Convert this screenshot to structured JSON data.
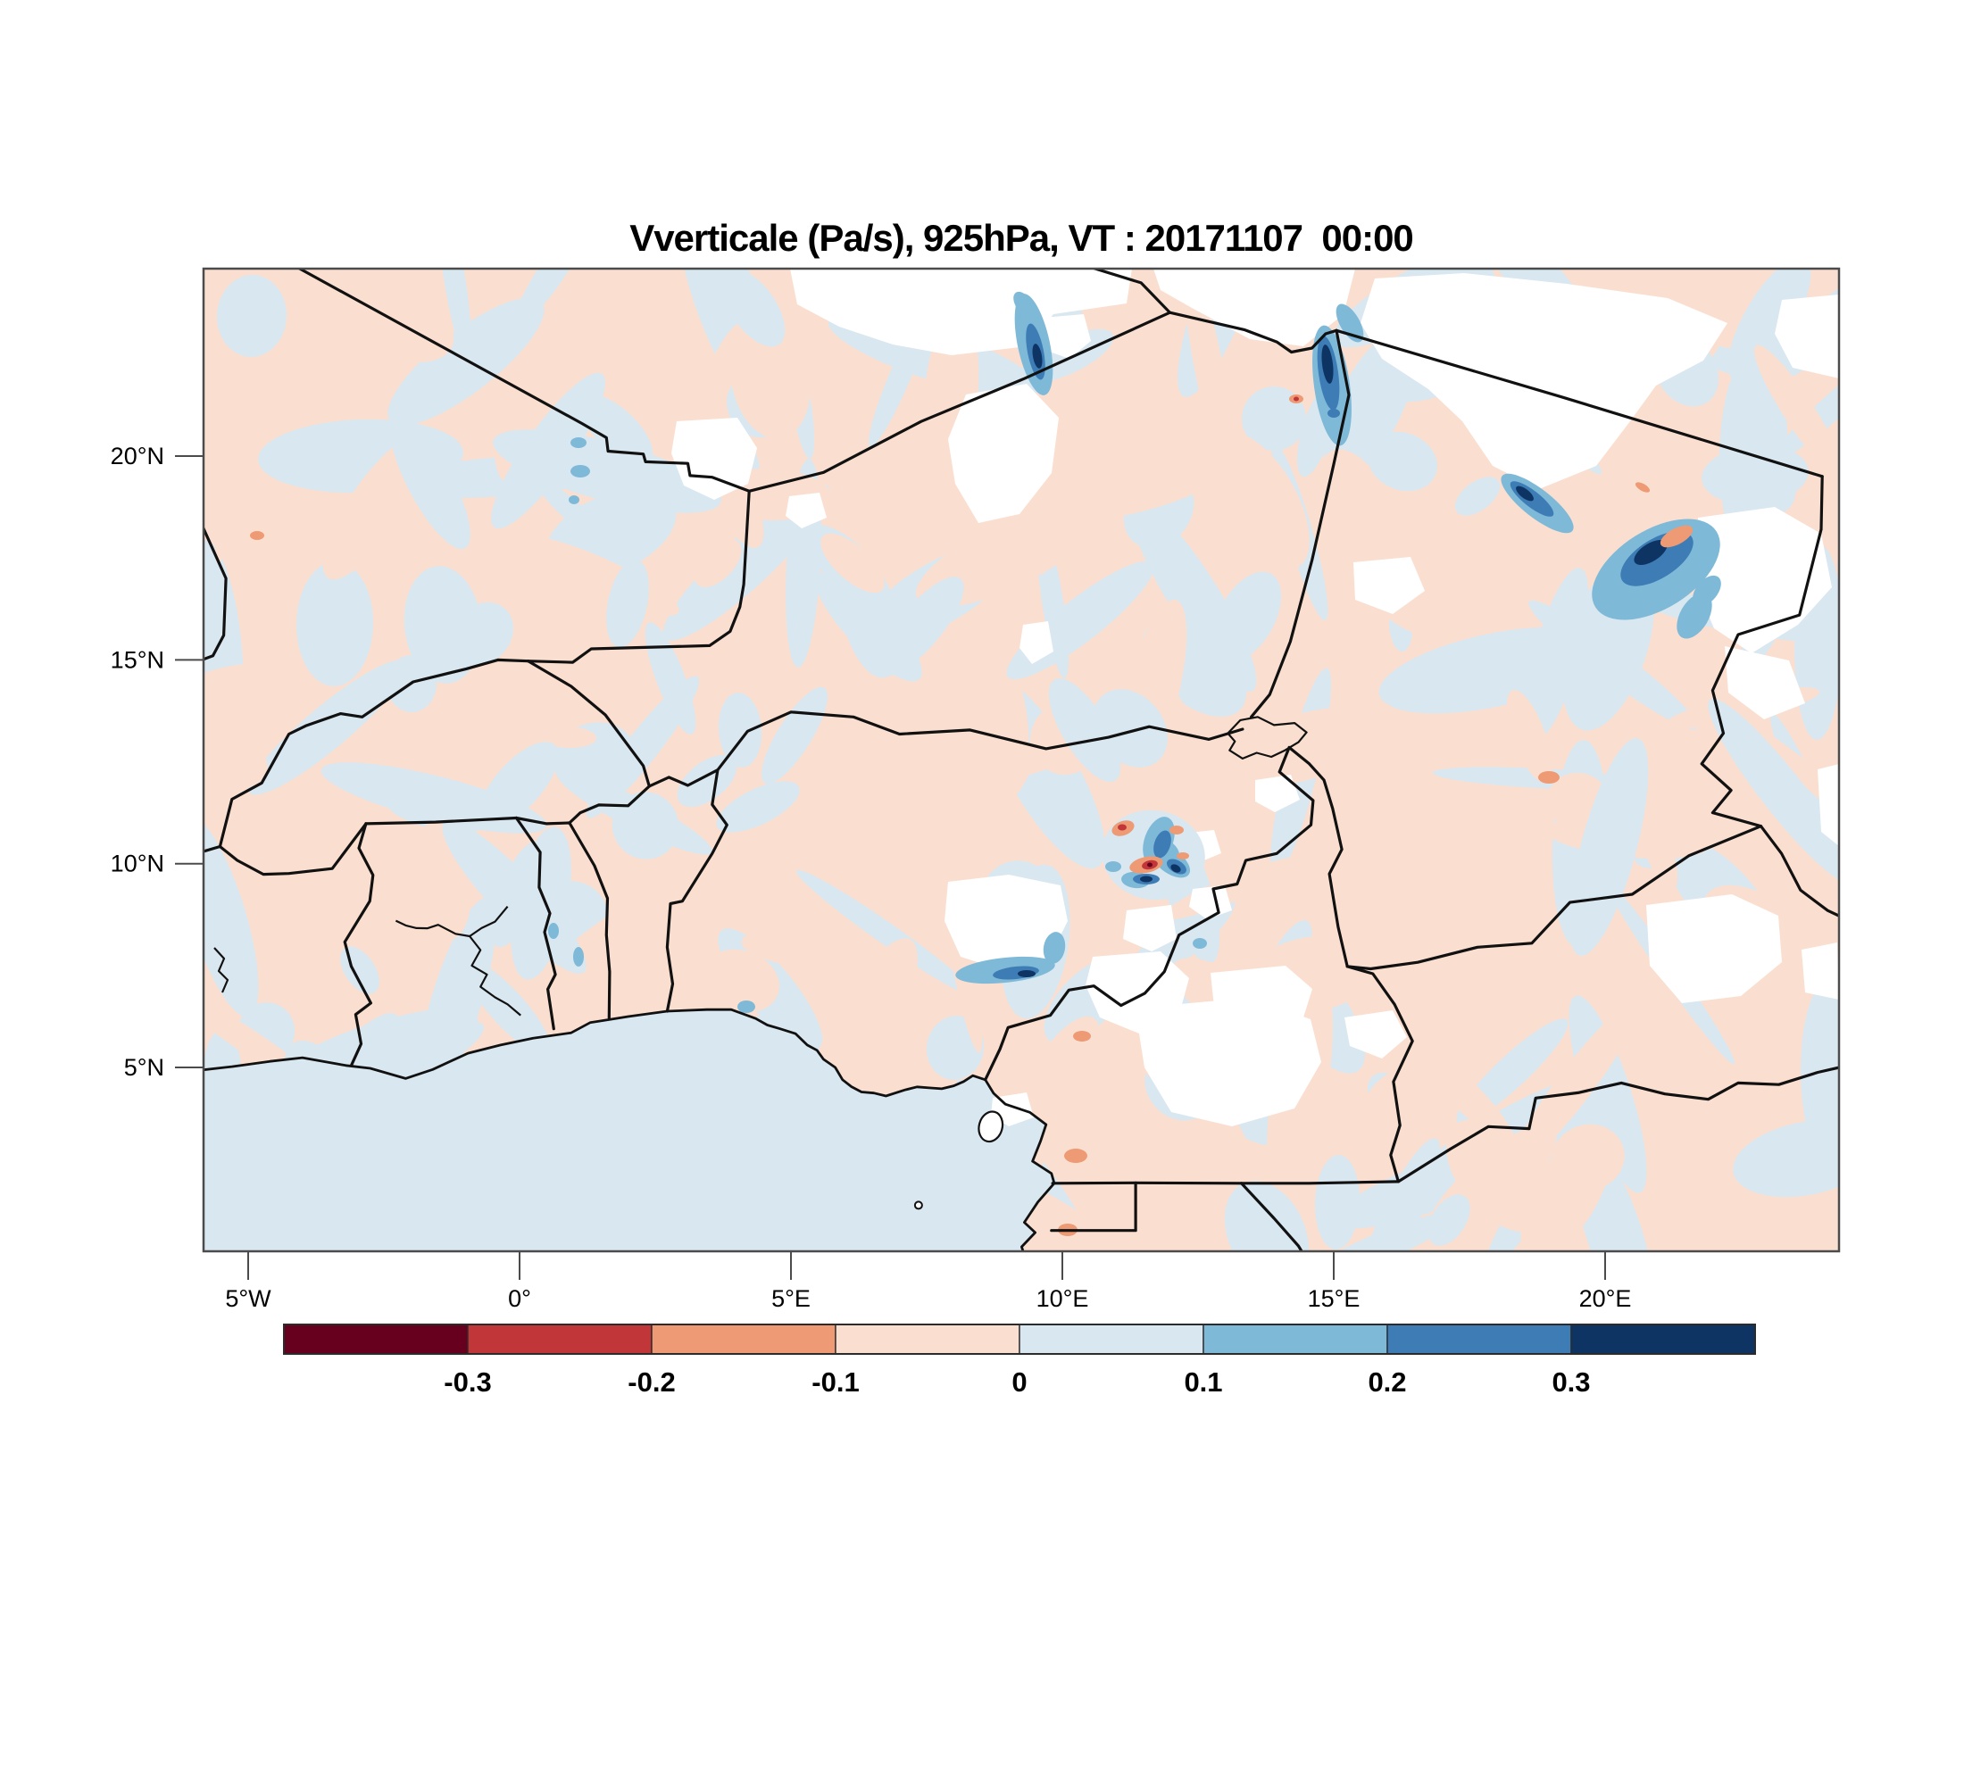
{
  "chart_data": {
    "type": "heatmap",
    "chart_kind": "filled-contour-weather-map",
    "title": "Vverticale (Pa/s), 925hPa, VT : 20171107  00:00",
    "variable": "Vverticale",
    "units": "Pa/s",
    "pressure_level": "925hPa",
    "valid_time": "20171107 00:00",
    "x_axis": {
      "label": "longitude",
      "tick_labels": [
        "5°W",
        "0°",
        "5°E",
        "10°E",
        "15°E",
        "20°E"
      ],
      "tick_lons": [
        -5,
        0,
        5,
        10,
        15,
        20
      ],
      "range_lon": [
        -5.82,
        24.31
      ]
    },
    "y_axis": {
      "label": "latitude",
      "tick_labels": [
        "5°N",
        "10°N",
        "15°N",
        "20°N"
      ],
      "tick_lats": [
        5,
        10,
        15,
        20
      ],
      "range_lat": [
        0.49,
        24.6
      ]
    },
    "colorbar": {
      "orientation": "horizontal",
      "boundary_labels": [
        "-0.3",
        "-0.2",
        "-0.1",
        "0",
        "0.1",
        "0.2",
        "0.3"
      ],
      "levels": [
        -0.3,
        -0.2,
        -0.1,
        0,
        0.1,
        0.2,
        0.3
      ],
      "colors": [
        "#67001f",
        "#c13639",
        "#ee9a74",
        "#fadfd0",
        "#d9e7f0",
        "#7fb9d8",
        "#3d7cb5",
        "#0e3463"
      ],
      "extend": "both"
    },
    "field_colors": {
      "weak_negative": "#fadfd0",
      "weak_positive": "#d9e7f0",
      "masked_terrain": "#ffffff",
      "border_color": "#111111"
    },
    "geography": {
      "region": "West and Central Africa",
      "features_visible": [
        "country borders",
        "Gulf of Guinea coastline",
        "Lake Volta",
        "Lake Chad",
        "Bioko island",
        "Equatorial Guinea (Rio Muni) box",
        "Niger delta"
      ]
    },
    "notable_anomalies": [
      {
        "description": "strong ascent/descent cell (> 0.3 Pa/s core)",
        "lon": 20.9,
        "lat": 17.6
      },
      {
        "description": "blue streak on west flank of Tibesti mask",
        "lon": 14.9,
        "lat": 22.2
      },
      {
        "description": "diagonal blue streak NE of Lake Chad",
        "lon": 18.6,
        "lat": 19.1
      },
      {
        "description": "mixed blue/red convective cluster near Jos Plateau",
        "lon": 11.8,
        "lat": 9.8
      },
      {
        "description": "red core (< -0.2 Pa/s) in Jos cluster",
        "lon": 11.6,
        "lat": 9.1
      },
      {
        "description": "blue arc under Jos Plateau mask",
        "lon": 9.2,
        "lat": 7.3
      },
      {
        "description": "blue staircase streak near 9.5E 22.5N",
        "lon": 9.5,
        "lat": 22.5
      }
    ]
  }
}
